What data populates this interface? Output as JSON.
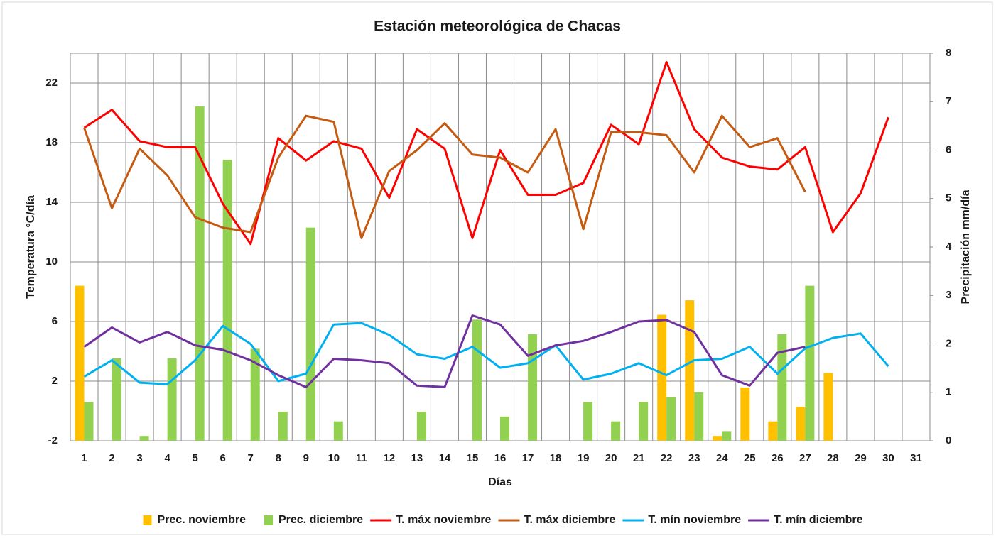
{
  "chart_data": {
    "type": "combo",
    "title": "Estación meteorológica de Chacas",
    "x_label": "Días",
    "y_label": "Temperatura °C/día",
    "y2_label": "Precipitación mm/día",
    "categories": [
      "1",
      "2",
      "3",
      "4",
      "5",
      "6",
      "7",
      "8",
      "9",
      "10",
      "11",
      "12",
      "13",
      "14",
      "15",
      "16",
      "17",
      "18",
      "19",
      "20",
      "21",
      "22",
      "23",
      "24",
      "25",
      "26",
      "27",
      "28",
      "29",
      "30",
      "31"
    ],
    "ylim": [
      -2,
      24
    ],
    "yticks": [
      -2,
      2,
      6,
      10,
      14,
      18,
      22
    ],
    "y2lim": [
      0,
      8
    ],
    "y2ticks": [
      0,
      1,
      2,
      3,
      4,
      5,
      6,
      7,
      8
    ],
    "grid": true,
    "legend": "bottom",
    "series": [
      {
        "name": "Prec. noviembre",
        "type": "bar",
        "axis": "y2",
        "color": "#ffc000",
        "values": [
          3.2,
          null,
          null,
          null,
          null,
          null,
          null,
          null,
          null,
          null,
          null,
          null,
          null,
          null,
          null,
          null,
          null,
          null,
          null,
          null,
          null,
          2.6,
          2.9,
          0.1,
          1.1,
          0.4,
          0.7,
          1.4,
          null,
          null,
          null
        ]
      },
      {
        "name": "Prec. diciembre",
        "type": "bar",
        "axis": "y2",
        "color": "#92d050",
        "values": [
          0.8,
          1.7,
          0.1,
          1.7,
          6.9,
          5.8,
          1.9,
          0.6,
          4.4,
          0.4,
          null,
          null,
          0.6,
          null,
          2.5,
          0.5,
          2.2,
          null,
          0.8,
          0.4,
          0.8,
          0.9,
          1.0,
          0.2,
          null,
          2.2,
          3.2,
          null,
          null,
          null,
          null
        ]
      },
      {
        "name": "T. máx noviembre",
        "type": "line",
        "color": "#ff0000",
        "values": [
          19.0,
          20.2,
          18.1,
          17.7,
          17.7,
          13.9,
          11.2,
          18.3,
          16.8,
          18.1,
          17.6,
          14.3,
          18.9,
          17.6,
          11.6,
          17.5,
          14.5,
          14.5,
          15.3,
          19.2,
          17.9,
          23.4,
          18.9,
          17.0,
          16.4,
          16.2,
          17.7,
          12.0,
          14.6,
          19.7,
          null
        ]
      },
      {
        "name": "T. máx diciembre",
        "type": "line",
        "color": "#c55a11",
        "values": [
          19.0,
          13.6,
          17.6,
          15.8,
          13.0,
          12.3,
          12.0,
          17.0,
          19.8,
          19.4,
          11.6,
          16.1,
          17.5,
          19.3,
          17.2,
          17.0,
          16.0,
          18.9,
          12.2,
          18.7,
          18.7,
          18.5,
          16.0,
          19.8,
          17.7,
          18.3,
          14.7,
          null,
          null,
          null,
          null
        ]
      },
      {
        "name": "T. mín noviembre",
        "type": "line",
        "color": "#00b0f0",
        "values": [
          2.3,
          3.4,
          1.9,
          1.8,
          3.4,
          5.7,
          4.5,
          2.0,
          2.5,
          5.8,
          5.9,
          5.1,
          3.8,
          3.5,
          4.3,
          2.9,
          3.2,
          4.4,
          2.1,
          2.5,
          3.2,
          2.4,
          3.4,
          3.5,
          4.3,
          2.5,
          4.2,
          4.9,
          5.2,
          3.0,
          null
        ]
      },
      {
        "name": "T. mín diciembre",
        "type": "line",
        "color": "#7030a0",
        "values": [
          4.3,
          5.6,
          4.6,
          5.3,
          4.4,
          4.1,
          3.4,
          2.4,
          1.6,
          3.5,
          3.4,
          3.2,
          1.7,
          1.6,
          6.4,
          5.8,
          3.7,
          4.4,
          4.7,
          5.3,
          6.0,
          6.1,
          5.3,
          2.4,
          1.7,
          3.9,
          4.3,
          null,
          null,
          null,
          null
        ]
      }
    ]
  }
}
